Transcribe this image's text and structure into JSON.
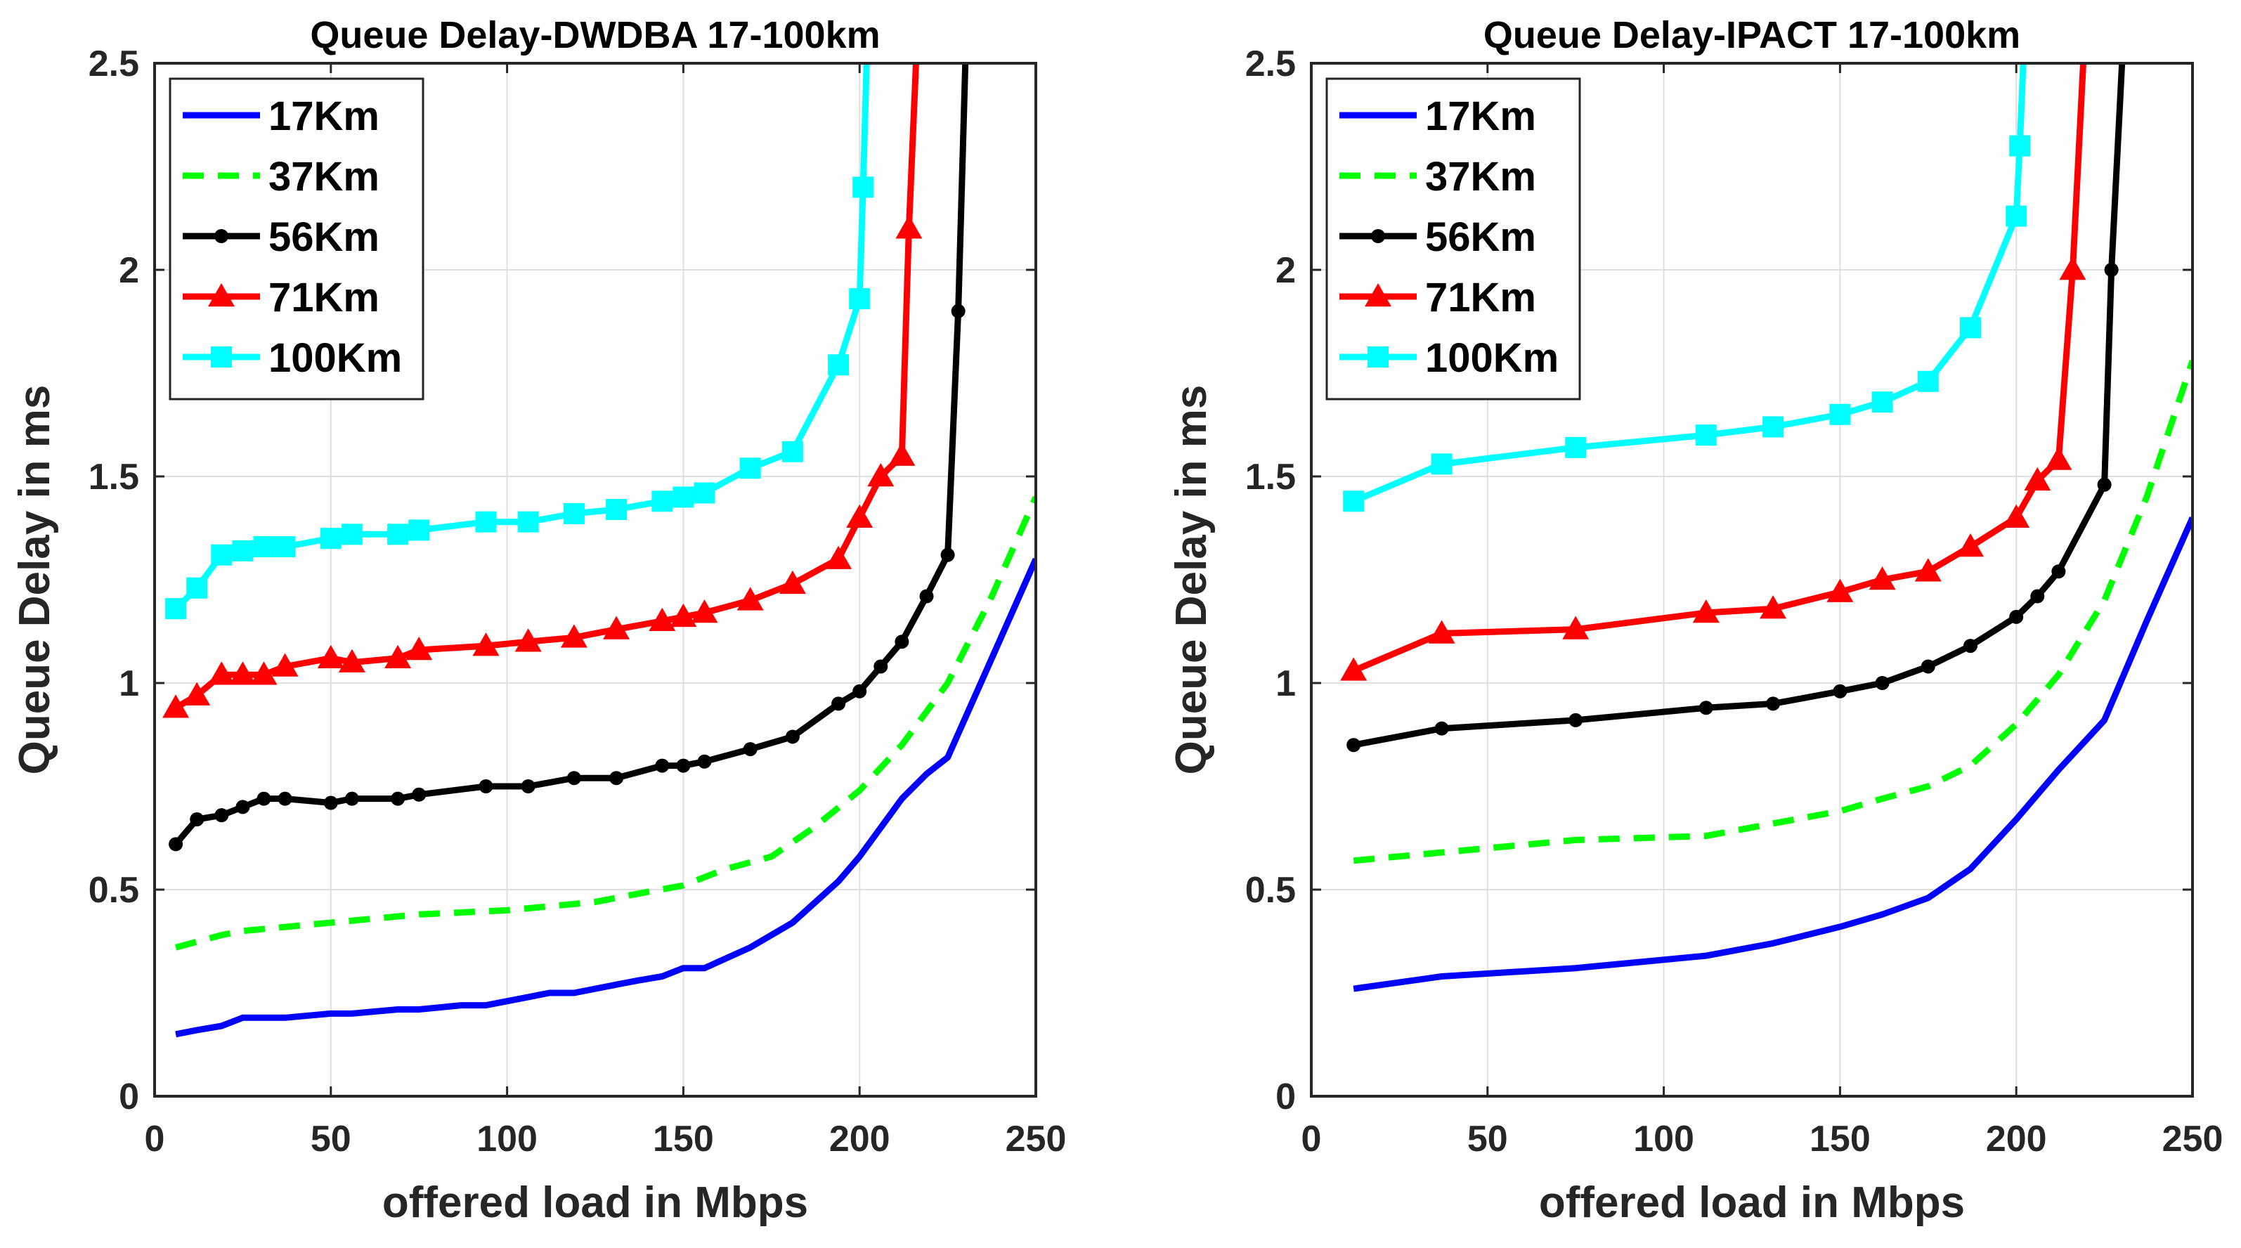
{
  "chart_data": [
    {
      "type": "line",
      "title": "Queue Delay-DWDBA 17-100km",
      "xlabel": "offered load in Mbps",
      "ylabel": "Queue Delay in ms",
      "xlim": [
        0,
        250
      ],
      "ylim": [
        0,
        2.5
      ],
      "xticks": [
        "0",
        "50",
        "100",
        "150",
        "200",
        "250"
      ],
      "yticks": [
        "0",
        "0.5",
        "1",
        "1.5",
        "2",
        "2.5"
      ],
      "grid": true,
      "legend_position": "top-left",
      "series": [
        {
          "name": "17Km",
          "color": "#0000ff",
          "style": "solid",
          "marker": "none",
          "x": [
            6,
            12,
            19,
            25,
            31,
            37,
            50,
            56,
            69,
            75,
            87,
            94,
            106,
            112,
            119,
            131,
            137,
            144,
            150,
            156,
            169,
            181,
            194,
            200,
            212,
            219,
            225,
            237,
            250
          ],
          "y": [
            0.15,
            0.16,
            0.17,
            0.19,
            0.19,
            0.19,
            0.2,
            0.2,
            0.21,
            0.21,
            0.22,
            0.22,
            0.24,
            0.25,
            0.25,
            0.27,
            0.28,
            0.29,
            0.31,
            0.31,
            0.36,
            0.42,
            0.52,
            0.58,
            0.72,
            0.78,
            0.82,
            1.05,
            1.3
          ]
        },
        {
          "name": "37Km",
          "color": "#00ff00",
          "style": "dashed",
          "marker": "none",
          "x": [
            6,
            19,
            25,
            50,
            75,
            100,
            125,
            137,
            150,
            162,
            175,
            187,
            200,
            212,
            225,
            237,
            250
          ],
          "y": [
            0.36,
            0.39,
            0.4,
            0.42,
            0.44,
            0.45,
            0.47,
            0.49,
            0.51,
            0.55,
            0.58,
            0.65,
            0.74,
            0.85,
            1.0,
            1.2,
            1.45
          ]
        },
        {
          "name": "56Km",
          "color": "#000000",
          "style": "solid",
          "marker": "dot",
          "x": [
            6,
            12,
            19,
            25,
            31,
            37,
            50,
            56,
            69,
            75,
            94,
            106,
            119,
            131,
            144,
            150,
            156,
            169,
            181,
            194,
            200,
            206,
            212,
            219,
            225,
            228,
            230
          ],
          "y": [
            0.61,
            0.67,
            0.68,
            0.7,
            0.72,
            0.72,
            0.71,
            0.72,
            0.72,
            0.73,
            0.75,
            0.75,
            0.77,
            0.77,
            0.8,
            0.8,
            0.81,
            0.84,
            0.87,
            0.95,
            0.98,
            1.04,
            1.1,
            1.21,
            1.31,
            1.9,
            2.5
          ]
        },
        {
          "name": "71Km",
          "color": "#ff0000",
          "style": "solid",
          "marker": "triangle",
          "x": [
            6,
            12,
            19,
            25,
            31,
            37,
            50,
            56,
            69,
            75,
            94,
            106,
            119,
            131,
            144,
            150,
            156,
            169,
            181,
            194,
            200,
            206,
            212,
            214,
            216
          ],
          "y": [
            0.94,
            0.97,
            1.02,
            1.02,
            1.02,
            1.04,
            1.06,
            1.05,
            1.06,
            1.08,
            1.09,
            1.1,
            1.11,
            1.13,
            1.15,
            1.16,
            1.17,
            1.2,
            1.24,
            1.3,
            1.4,
            1.5,
            1.55,
            2.1,
            2.5
          ]
        },
        {
          "name": "100Km",
          "color": "#00ffff",
          "style": "solid",
          "marker": "square",
          "x": [
            6,
            12,
            19,
            25,
            31,
            37,
            50,
            56,
            69,
            75,
            94,
            106,
            119,
            131,
            144,
            150,
            156,
            169,
            181,
            194,
            200,
            201,
            202
          ],
          "y": [
            1.18,
            1.23,
            1.31,
            1.32,
            1.33,
            1.33,
            1.35,
            1.36,
            1.36,
            1.37,
            1.39,
            1.39,
            1.41,
            1.42,
            1.44,
            1.45,
            1.46,
            1.52,
            1.56,
            1.77,
            1.93,
            2.2,
            2.5
          ]
        }
      ]
    },
    {
      "type": "line",
      "title": "Queue Delay-IPACT 17-100km",
      "xlabel": "offered load in Mbps",
      "ylabel": "Queue Delay in ms",
      "xlim": [
        0,
        250
      ],
      "ylim": [
        0,
        2.5
      ],
      "xticks": [
        "0",
        "50",
        "100",
        "150",
        "200",
        "250"
      ],
      "yticks": [
        "0",
        "0.5",
        "1",
        "1.5",
        "2",
        "2.5"
      ],
      "grid": true,
      "legend_position": "top-left",
      "series": [
        {
          "name": "17Km",
          "color": "#0000ff",
          "style": "solid",
          "marker": "none",
          "x": [
            12,
            37,
            75,
            112,
            131,
            150,
            162,
            175,
            187,
            200,
            212,
            225,
            237,
            250
          ],
          "y": [
            0.26,
            0.29,
            0.31,
            0.34,
            0.37,
            0.41,
            0.44,
            0.48,
            0.55,
            0.67,
            0.79,
            0.91,
            1.15,
            1.4
          ]
        },
        {
          "name": "37Km",
          "color": "#00ff00",
          "style": "dashed",
          "marker": "none",
          "x": [
            12,
            37,
            75,
            112,
            131,
            150,
            162,
            175,
            187,
            200,
            212,
            225,
            237,
            250
          ],
          "y": [
            0.57,
            0.59,
            0.62,
            0.63,
            0.66,
            0.69,
            0.72,
            0.75,
            0.8,
            0.9,
            1.02,
            1.2,
            1.45,
            1.78
          ]
        },
        {
          "name": "56Km",
          "color": "#000000",
          "style": "solid",
          "marker": "dot",
          "x": [
            12,
            37,
            75,
            112,
            131,
            150,
            162,
            175,
            187,
            200,
            206,
            212,
            225,
            227,
            230
          ],
          "y": [
            0.85,
            0.89,
            0.91,
            0.94,
            0.95,
            0.98,
            1.0,
            1.04,
            1.09,
            1.16,
            1.21,
            1.27,
            1.48,
            2.0,
            2.5
          ]
        },
        {
          "name": "71Km",
          "color": "#ff0000",
          "style": "solid",
          "marker": "triangle",
          "x": [
            12,
            37,
            75,
            112,
            131,
            150,
            162,
            175,
            187,
            200,
            206,
            212,
            216,
            219
          ],
          "y": [
            1.03,
            1.12,
            1.13,
            1.17,
            1.18,
            1.22,
            1.25,
            1.27,
            1.33,
            1.4,
            1.49,
            1.54,
            2.0,
            2.5
          ]
        },
        {
          "name": "100Km",
          "color": "#00ffff",
          "style": "solid",
          "marker": "square",
          "x": [
            12,
            37,
            75,
            112,
            131,
            150,
            162,
            175,
            187,
            200,
            201,
            202
          ],
          "y": [
            1.44,
            1.53,
            1.57,
            1.6,
            1.62,
            1.65,
            1.68,
            1.73,
            1.86,
            2.13,
            2.3,
            2.5
          ]
        }
      ]
    }
  ]
}
